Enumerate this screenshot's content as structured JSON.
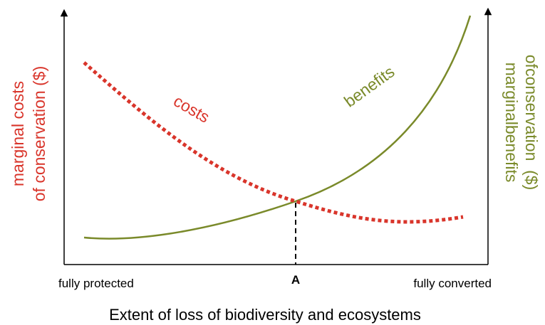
{
  "y_left_label": [
    "marginal costs",
    "of conservation ($)"
  ],
  "y_right_label": [
    "marginalbenefits",
    "ofconservation  ($)"
  ],
  "curves": {
    "costs": "costs",
    "benefits": "benefits"
  },
  "point": "A",
  "x_ends": {
    "left": "fully protected",
    "right": "fully converted"
  },
  "x_title": "Extent of loss of biodiversity and ecosystems"
}
